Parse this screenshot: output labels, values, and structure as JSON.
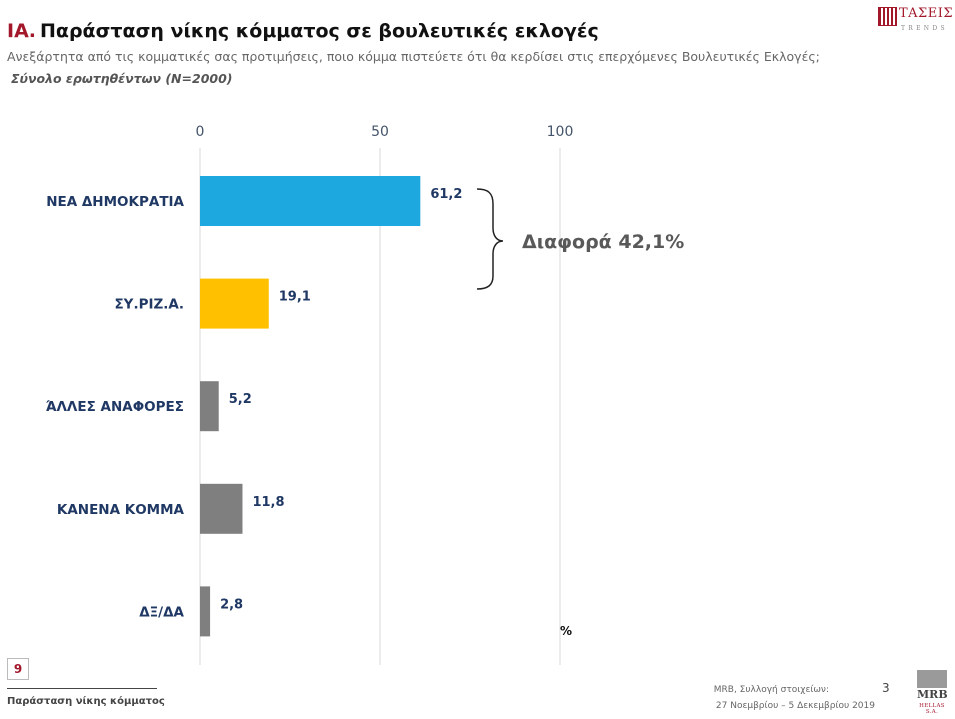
{
  "header": {
    "code": "ΙΑ.",
    "title": "Παράσταση νίκης κόμματος σε βουλευτικές εκλογές",
    "question": "Ανεξάρτητα από τις κομματικές σας προτιμήσεις, ποιο κόμμα πιστεύετε ότι θα κερδίσει στις επερχόμενες Βουλευτικές Εκλογές;",
    "base": "Σύνολο ερωτηθέντων (N=2000)"
  },
  "logo": {
    "name": "ΤΑΣΕΙΣ",
    "sub": "TRENDS"
  },
  "chart_data": {
    "type": "bar",
    "orientation": "horizontal",
    "categories": [
      "ΝΕΑ ΔΗΜΟΚΡΑΤΙΑ",
      "ΣΥ.ΡΙΖ.Α.",
      "ΆΛΛΕΣ ΑΝΑΦΟΡΕΣ",
      "ΚΑΝΕΝΑ ΚΟΜΜΑ",
      "ΔΞ/ΔΑ"
    ],
    "values": [
      61.2,
      19.1,
      5.2,
      11.8,
      2.8
    ],
    "value_labels": [
      "61,2",
      "19,1",
      "5,2",
      "11,8",
      "2,8"
    ],
    "colors": [
      "#1ea8e0",
      "#ffc000",
      "#7f7f7f",
      "#7f7f7f",
      "#7f7f7f"
    ],
    "xlim": [
      0,
      100
    ],
    "xticks": [
      0,
      50,
      100
    ],
    "xtick_labels": [
      "0",
      "50",
      "100"
    ],
    "axis_position": "top",
    "grid": true,
    "unit": "%",
    "annotation": "Διαφορά 42,1%"
  },
  "footer": {
    "page_number": "9",
    "section": "Παράσταση νίκης κόμματος",
    "source": "MRB, Συλλογή στοιχείων:",
    "slide": "3",
    "dates": "27 Νοεμβρίου – 5 Δεκεμβρίου 2019",
    "mrb_name": "MRB",
    "mrb_sub": "HELLAS S.A."
  }
}
